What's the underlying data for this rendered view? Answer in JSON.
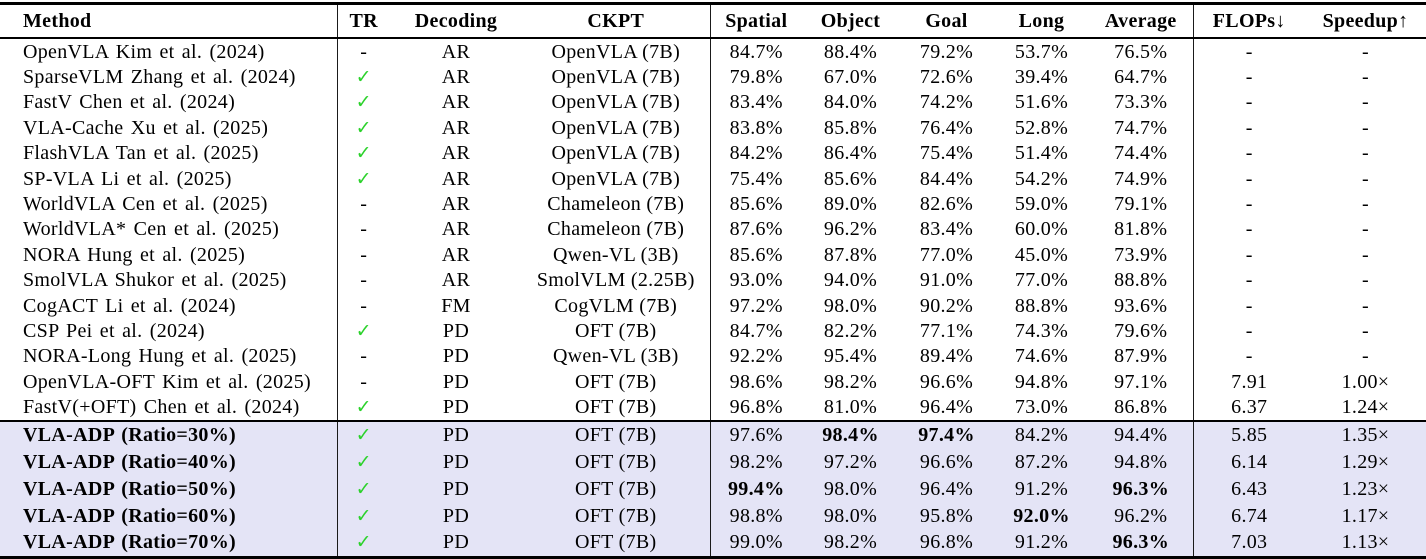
{
  "table": {
    "column_order": [
      "method",
      "tr",
      "decoding",
      "ckpt",
      "spatial",
      "object",
      "goal",
      "long",
      "average",
      "flops",
      "speedup"
    ],
    "columns": [
      {
        "key": "method",
        "label": "Method"
      },
      {
        "key": "tr",
        "label": "TR"
      },
      {
        "key": "decoding",
        "label": "Decoding"
      },
      {
        "key": "ckpt",
        "label": "CKPT"
      },
      {
        "key": "spatial",
        "label": "Spatial"
      },
      {
        "key": "object",
        "label": "Object"
      },
      {
        "key": "goal",
        "label": "Goal"
      },
      {
        "key": "long",
        "label": "Long"
      },
      {
        "key": "average",
        "label": "Average"
      },
      {
        "key": "flops",
        "label": "FLOPs↓"
      },
      {
        "key": "speedup",
        "label": "Speedup↑"
      }
    ],
    "check_glyph": "✓",
    "colors": {
      "highlight_row_background": "#E4E4F6",
      "checkmark_green": "#2BD22B",
      "text": "#000000"
    },
    "rows": [
      {
        "method": "OpenVLA Kim et al. (2024)",
        "tr": "-",
        "decoding": "AR",
        "ckpt": "OpenVLA (7B)",
        "spatial": "84.7%",
        "object": "88.4%",
        "goal": "79.2%",
        "long": "53.7%",
        "average": "76.5%",
        "flops": "-",
        "speedup": "-",
        "bold": []
      },
      {
        "method": "SparseVLM Zhang et al. (2024)",
        "tr": "check",
        "decoding": "AR",
        "ckpt": "OpenVLA (7B)",
        "spatial": "79.8%",
        "object": "67.0%",
        "goal": "72.6%",
        "long": "39.4%",
        "average": "64.7%",
        "flops": "-",
        "speedup": "-",
        "bold": []
      },
      {
        "method": "FastV Chen et al. (2024)",
        "tr": "check",
        "decoding": "AR",
        "ckpt": "OpenVLA (7B)",
        "spatial": "83.4%",
        "object": "84.0%",
        "goal": "74.2%",
        "long": "51.6%",
        "average": "73.3%",
        "flops": "-",
        "speedup": "-",
        "bold": []
      },
      {
        "method": "VLA-Cache Xu et al. (2025)",
        "tr": "check",
        "decoding": "AR",
        "ckpt": "OpenVLA (7B)",
        "spatial": "83.8%",
        "object": "85.8%",
        "goal": "76.4%",
        "long": "52.8%",
        "average": "74.7%",
        "flops": "-",
        "speedup": "-",
        "bold": []
      },
      {
        "method": "FlashVLA Tan et al. (2025)",
        "tr": "check",
        "decoding": "AR",
        "ckpt": "OpenVLA (7B)",
        "spatial": "84.2%",
        "object": "86.4%",
        "goal": "75.4%",
        "long": "51.4%",
        "average": "74.4%",
        "flops": "-",
        "speedup": "-",
        "bold": []
      },
      {
        "method": "SP-VLA Li et al. (2025)",
        "tr": "check",
        "decoding": "AR",
        "ckpt": "OpenVLA (7B)",
        "spatial": "75.4%",
        "object": "85.6%",
        "goal": "84.4%",
        "long": "54.2%",
        "average": "74.9%",
        "flops": "-",
        "speedup": "-",
        "bold": []
      },
      {
        "method": "WorldVLA Cen et al. (2025)",
        "tr": "-",
        "decoding": "AR",
        "ckpt": "Chameleon (7B)",
        "spatial": "85.6%",
        "object": "89.0%",
        "goal": "82.6%",
        "long": "59.0%",
        "average": "79.1%",
        "flops": "-",
        "speedup": "-",
        "bold": []
      },
      {
        "method": "WorldVLA* Cen et al. (2025)",
        "tr": "-",
        "decoding": "AR",
        "ckpt": "Chameleon (7B)",
        "spatial": "87.6%",
        "object": "96.2%",
        "goal": "83.4%",
        "long": "60.0%",
        "average": "81.8%",
        "flops": "-",
        "speedup": "-",
        "bold": []
      },
      {
        "method": "NORA Hung et al. (2025)",
        "tr": "-",
        "decoding": "AR",
        "ckpt": "Qwen-VL (3B)",
        "spatial": "85.6%",
        "object": "87.8%",
        "goal": "77.0%",
        "long": "45.0%",
        "average": "73.9%",
        "flops": "-",
        "speedup": "-",
        "bold": []
      },
      {
        "method": "SmolVLA Shukor et al. (2025)",
        "tr": "-",
        "decoding": "AR",
        "ckpt": "SmolVLM (2.25B)",
        "spatial": "93.0%",
        "object": "94.0%",
        "goal": "91.0%",
        "long": "77.0%",
        "average": "88.8%",
        "flops": "-",
        "speedup": "-",
        "bold": []
      },
      {
        "method": "CogACT Li et al. (2024)",
        "tr": "-",
        "decoding": "FM",
        "ckpt": "CogVLM (7B)",
        "spatial": "97.2%",
        "object": "98.0%",
        "goal": "90.2%",
        "long": "88.8%",
        "average": "93.6%",
        "flops": "-",
        "speedup": "-",
        "bold": []
      },
      {
        "method": "CSP Pei et al. (2024)",
        "tr": "check",
        "decoding": "PD",
        "ckpt": "OFT (7B)",
        "spatial": "84.7%",
        "object": "82.2%",
        "goal": "77.1%",
        "long": "74.3%",
        "average": "79.6%",
        "flops": "-",
        "speedup": "-",
        "bold": []
      },
      {
        "method": "NORA-Long Hung et al. (2025)",
        "tr": "-",
        "decoding": "PD",
        "ckpt": "Qwen-VL (3B)",
        "spatial": "92.2%",
        "object": "95.4%",
        "goal": "89.4%",
        "long": "74.6%",
        "average": "87.9%",
        "flops": "-",
        "speedup": "-",
        "bold": []
      },
      {
        "method": "OpenVLA-OFT Kim et al. (2025)",
        "tr": "-",
        "decoding": "PD",
        "ckpt": "OFT (7B)",
        "spatial": "98.6%",
        "object": "98.2%",
        "goal": "96.6%",
        "long": "94.8%",
        "average": "97.1%",
        "flops": "7.91",
        "speedup": "1.00×",
        "bold": []
      },
      {
        "method": "FastV(+OFT) Chen et al. (2024)",
        "tr": "check",
        "decoding": "PD",
        "ckpt": "OFT (7B)",
        "spatial": "96.8%",
        "object": "81.0%",
        "goal": "96.4%",
        "long": "73.0%",
        "average": "86.8%",
        "flops": "6.37",
        "speedup": "1.24×",
        "bold": []
      }
    ],
    "highlight_rows": [
      {
        "method": "VLA-ADP (Ratio=30%)",
        "tr": "check",
        "decoding": "PD",
        "ckpt": "OFT (7B)",
        "spatial": "97.6%",
        "object": "98.4%",
        "goal": "97.4%",
        "long": "84.2%",
        "average": "94.4%",
        "flops": "5.85",
        "speedup": "1.35×",
        "bold": [
          "object",
          "goal"
        ]
      },
      {
        "method": "VLA-ADP (Ratio=40%)",
        "tr": "check",
        "decoding": "PD",
        "ckpt": "OFT (7B)",
        "spatial": "98.2%",
        "object": "97.2%",
        "goal": "96.6%",
        "long": "87.2%",
        "average": "94.8%",
        "flops": "6.14",
        "speedup": "1.29×",
        "bold": []
      },
      {
        "method": "VLA-ADP (Ratio=50%)",
        "tr": "check",
        "decoding": "PD",
        "ckpt": "OFT (7B)",
        "spatial": "99.4%",
        "object": "98.0%",
        "goal": "96.4%",
        "long": "91.2%",
        "average": "96.3%",
        "flops": "6.43",
        "speedup": "1.23×",
        "bold": [
          "spatial",
          "average"
        ]
      },
      {
        "method": "VLA-ADP (Ratio=60%)",
        "tr": "check",
        "decoding": "PD",
        "ckpt": "OFT (7B)",
        "spatial": "98.8%",
        "object": "98.0%",
        "goal": "95.8%",
        "long": "92.0%",
        "average": "96.2%",
        "flops": "6.74",
        "speedup": "1.17×",
        "bold": [
          "long"
        ]
      },
      {
        "method": "VLA-ADP (Ratio=70%)",
        "tr": "check",
        "decoding": "PD",
        "ckpt": "OFT (7B)",
        "spatial": "99.0%",
        "object": "98.2%",
        "goal": "96.8%",
        "long": "91.2%",
        "average": "96.3%",
        "flops": "7.03",
        "speedup": "1.13×",
        "bold": [
          "average"
        ]
      }
    ]
  }
}
